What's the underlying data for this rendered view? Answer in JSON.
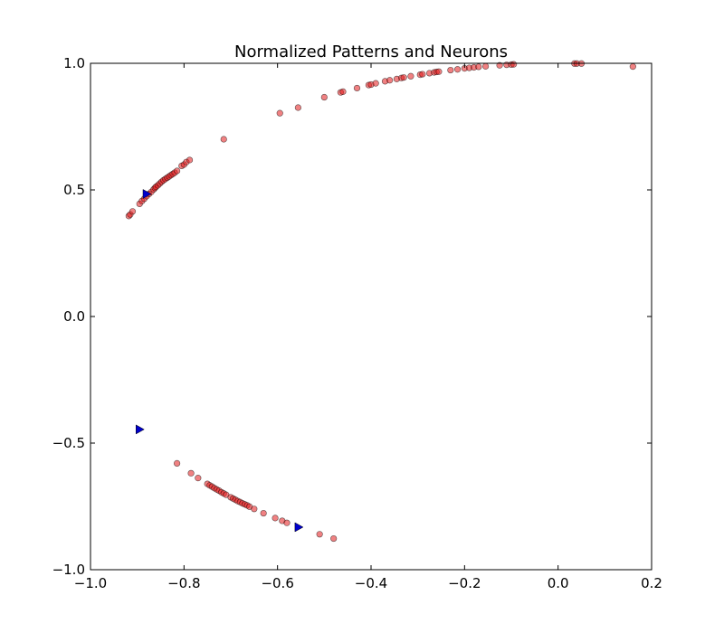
{
  "chart_data": {
    "type": "scatter",
    "title": "Normalized Patterns and Neurons",
    "xlabel": "",
    "ylabel": "",
    "xlim": [
      -1.0,
      0.2
    ],
    "ylim": [
      -1.0,
      1.0
    ],
    "xticks": [
      -1.0,
      -0.8,
      -0.6,
      -0.4,
      -0.2,
      0.0,
      0.2
    ],
    "yticks": [
      -1.0,
      -0.5,
      0.0,
      0.5,
      1.0
    ],
    "xtick_labels": [
      "−1.0",
      "−0.8",
      "−0.6",
      "−0.4",
      "−0.2",
      "0.0",
      "0.2"
    ],
    "ytick_labels": [
      "−1.0",
      "−0.5",
      "0.0",
      "0.5",
      "1.0"
    ],
    "grid": false,
    "series": [
      {
        "name": "patterns",
        "marker": "circle",
        "color": "#e41a1c",
        "points": [
          [
            -0.918,
            0.397
          ],
          [
            -0.915,
            0.403
          ],
          [
            -0.91,
            0.415
          ],
          [
            -0.895,
            0.445
          ],
          [
            -0.89,
            0.456
          ],
          [
            -0.885,
            0.465
          ],
          [
            -0.88,
            0.475
          ],
          [
            -0.875,
            0.484
          ],
          [
            -0.87,
            0.492
          ],
          [
            -0.865,
            0.502
          ],
          [
            -0.862,
            0.508
          ],
          [
            -0.86,
            0.512
          ],
          [
            -0.856,
            0.518
          ],
          [
            -0.852,
            0.525
          ],
          [
            -0.848,
            0.532
          ],
          [
            -0.844,
            0.538
          ],
          [
            -0.84,
            0.543
          ],
          [
            -0.836,
            0.548
          ],
          [
            -0.832,
            0.553
          ],
          [
            -0.828,
            0.558
          ],
          [
            -0.824,
            0.563
          ],
          [
            -0.82,
            0.568
          ],
          [
            -0.815,
            0.575
          ],
          [
            -0.805,
            0.595
          ],
          [
            -0.8,
            0.6
          ],
          [
            -0.795,
            0.61
          ],
          [
            -0.788,
            0.618
          ],
          [
            -0.715,
            0.7
          ],
          [
            -0.595,
            0.803
          ],
          [
            -0.556,
            0.825
          ],
          [
            -0.5,
            0.866
          ],
          [
            -0.465,
            0.885
          ],
          [
            -0.46,
            0.888
          ],
          [
            -0.43,
            0.902
          ],
          [
            -0.405,
            0.914
          ],
          [
            -0.4,
            0.916
          ],
          [
            -0.39,
            0.921
          ],
          [
            -0.37,
            0.929
          ],
          [
            -0.36,
            0.933
          ],
          [
            -0.345,
            0.938
          ],
          [
            -0.335,
            0.942
          ],
          [
            -0.33,
            0.944
          ],
          [
            -0.315,
            0.949
          ],
          [
            -0.295,
            0.955
          ],
          [
            -0.29,
            0.957
          ],
          [
            -0.275,
            0.961
          ],
          [
            -0.265,
            0.964
          ],
          [
            -0.26,
            0.966
          ],
          [
            -0.255,
            0.967
          ],
          [
            -0.23,
            0.973
          ],
          [
            -0.215,
            0.976
          ],
          [
            -0.2,
            0.98
          ],
          [
            -0.19,
            0.982
          ],
          [
            -0.18,
            0.984
          ],
          [
            -0.17,
            0.986
          ],
          [
            -0.155,
            0.988
          ],
          [
            -0.125,
            0.992
          ],
          [
            -0.11,
            0.994
          ],
          [
            -0.1,
            0.995
          ],
          [
            -0.095,
            0.996
          ],
          [
            0.035,
            0.999
          ],
          [
            0.04,
            0.999
          ],
          [
            0.05,
            0.999
          ],
          [
            0.16,
            0.987
          ],
          [
            -0.815,
            -0.58
          ],
          [
            -0.785,
            -0.619
          ],
          [
            -0.77,
            -0.638
          ],
          [
            -0.75,
            -0.661
          ],
          [
            -0.745,
            -0.667
          ],
          [
            -0.74,
            -0.672
          ],
          [
            -0.735,
            -0.678
          ],
          [
            -0.73,
            -0.683
          ],
          [
            -0.725,
            -0.688
          ],
          [
            -0.72,
            -0.694
          ],
          [
            -0.715,
            -0.699
          ],
          [
            -0.71,
            -0.704
          ],
          [
            -0.7,
            -0.714
          ],
          [
            -0.695,
            -0.719
          ],
          [
            -0.69,
            -0.724
          ],
          [
            -0.685,
            -0.729
          ],
          [
            -0.68,
            -0.733
          ],
          [
            -0.675,
            -0.738
          ],
          [
            -0.67,
            -0.742
          ],
          [
            -0.665,
            -0.746
          ],
          [
            -0.66,
            -0.751
          ],
          [
            -0.65,
            -0.76
          ],
          [
            -0.63,
            -0.777
          ],
          [
            -0.605,
            -0.796
          ],
          [
            -0.59,
            -0.807
          ],
          [
            -0.58,
            -0.815
          ],
          [
            -0.51,
            -0.86
          ],
          [
            -0.48,
            -0.877
          ]
        ]
      },
      {
        "name": "neurons",
        "marker": "triangle-right",
        "color": "#0000cc",
        "points": [
          [
            -0.88,
            0.484
          ],
          [
            -0.895,
            -0.446
          ],
          [
            -0.555,
            -0.832
          ]
        ]
      }
    ]
  }
}
